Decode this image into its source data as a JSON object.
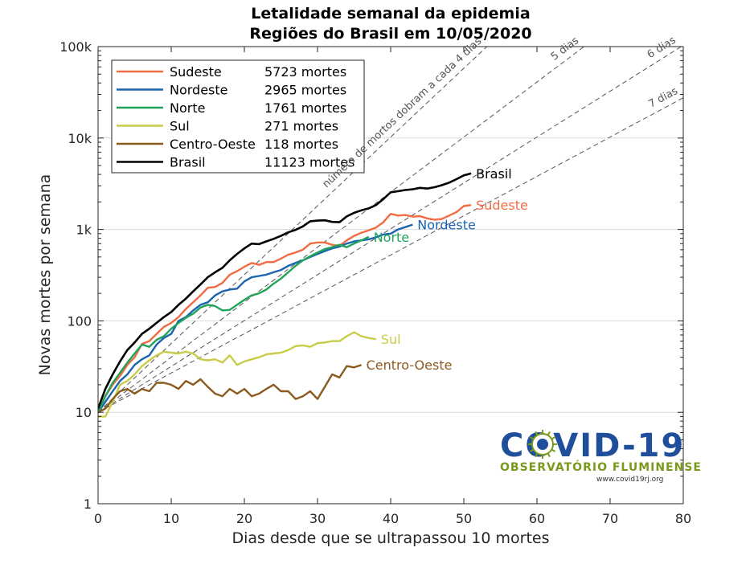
{
  "title_line1": "Letalidade semanal da epidemia",
  "title_line2": "Regiões do Brasil em 10/05/2020",
  "chart_data": {
    "type": "line",
    "xlabel": "Dias desde que se ultrapassou 10 mortes",
    "ylabel": "Novas mortes por semana",
    "xlim": [
      0,
      80
    ],
    "ylim": [
      1,
      100000
    ],
    "yscale": "log",
    "grid": "horizontal",
    "legend_position": "top-left",
    "x_ticks": [
      0,
      10,
      20,
      30,
      40,
      50,
      60,
      70,
      80
    ],
    "y_ticks": [
      {
        "value": 1,
        "label": "1"
      },
      {
        "value": 10,
        "label": "10"
      },
      {
        "value": 100,
        "label": "100"
      },
      {
        "value": 1000,
        "label": "1k"
      },
      {
        "value": 10000,
        "label": "10k"
      },
      {
        "value": 100000,
        "label": "100k"
      }
    ],
    "reference_lines": [
      {
        "label": "número de mortos dobram a cada 4 dias",
        "doubling_days": 4,
        "color": "#555555"
      },
      {
        "label": "5 dias",
        "doubling_days": 5,
        "color": "#555555"
      },
      {
        "label": "6 dias",
        "doubling_days": 6,
        "color": "#555555"
      },
      {
        "label": "7 dias",
        "doubling_days": 7,
        "color": "#555555"
      }
    ],
    "series": [
      {
        "name": "Sudeste",
        "deaths": "5723 mortes",
        "color": "#f26b43",
        "points": [
          [
            0,
            10
          ],
          [
            1,
            15
          ],
          [
            2,
            20
          ],
          [
            3,
            25
          ],
          [
            4,
            33
          ],
          [
            5,
            40
          ],
          [
            6,
            56
          ],
          [
            7,
            60
          ],
          [
            8,
            72
          ],
          [
            9,
            86
          ],
          [
            10,
            95
          ],
          [
            11,
            110
          ],
          [
            12,
            135
          ],
          [
            13,
            160
          ],
          [
            14,
            190
          ],
          [
            15,
            230
          ],
          [
            16,
            235
          ],
          [
            17,
            260
          ],
          [
            18,
            320
          ],
          [
            19,
            350
          ],
          [
            20,
            390
          ],
          [
            21,
            430
          ],
          [
            22,
            410
          ],
          [
            23,
            440
          ],
          [
            24,
            440
          ],
          [
            25,
            480
          ],
          [
            26,
            530
          ],
          [
            27,
            560
          ],
          [
            28,
            600
          ],
          [
            29,
            700
          ],
          [
            30,
            720
          ],
          [
            31,
            720
          ],
          [
            32,
            680
          ],
          [
            33,
            660
          ],
          [
            34,
            760
          ],
          [
            35,
            850
          ],
          [
            36,
            920
          ],
          [
            37,
            980
          ],
          [
            38,
            1050
          ],
          [
            39,
            1200
          ],
          [
            40,
            1480
          ],
          [
            41,
            1420
          ],
          [
            42,
            1440
          ],
          [
            43,
            1380
          ],
          [
            44,
            1400
          ],
          [
            45,
            1320
          ],
          [
            46,
            1280
          ],
          [
            47,
            1300
          ],
          [
            48,
            1420
          ],
          [
            49,
            1550
          ],
          [
            50,
            1800
          ],
          [
            51,
            1850
          ]
        ]
      },
      {
        "name": "Nordeste",
        "deaths": "2965 mortes",
        "color": "#1a64b0",
        "points": [
          [
            0,
            10
          ],
          [
            1,
            13
          ],
          [
            2,
            17
          ],
          [
            3,
            22
          ],
          [
            4,
            26
          ],
          [
            5,
            33
          ],
          [
            6,
            38
          ],
          [
            7,
            42
          ],
          [
            8,
            55
          ],
          [
            9,
            65
          ],
          [
            10,
            72
          ],
          [
            11,
            100
          ],
          [
            12,
            110
          ],
          [
            13,
            130
          ],
          [
            14,
            150
          ],
          [
            15,
            160
          ],
          [
            16,
            190
          ],
          [
            17,
            210
          ],
          [
            18,
            220
          ],
          [
            19,
            225
          ],
          [
            20,
            270
          ],
          [
            21,
            300
          ],
          [
            22,
            310
          ],
          [
            23,
            320
          ],
          [
            24,
            340
          ],
          [
            25,
            360
          ],
          [
            26,
            400
          ],
          [
            27,
            430
          ],
          [
            28,
            460
          ],
          [
            29,
            500
          ],
          [
            30,
            540
          ],
          [
            31,
            580
          ],
          [
            32,
            620
          ],
          [
            33,
            650
          ],
          [
            34,
            700
          ],
          [
            35,
            740
          ],
          [
            36,
            760
          ],
          [
            37,
            780
          ],
          [
            38,
            820
          ],
          [
            39,
            880
          ],
          [
            40,
            900
          ],
          [
            41,
            1000
          ],
          [
            42,
            1060
          ],
          [
            43,
            1130
          ]
        ]
      },
      {
        "name": "Norte",
        "deaths": "1761 mortes",
        "color": "#21a35a",
        "points": [
          [
            0,
            10
          ],
          [
            1,
            15
          ],
          [
            2,
            21
          ],
          [
            3,
            27
          ],
          [
            4,
            35
          ],
          [
            5,
            44
          ],
          [
            6,
            55
          ],
          [
            7,
            52
          ],
          [
            8,
            62
          ],
          [
            9,
            68
          ],
          [
            10,
            82
          ],
          [
            11,
            95
          ],
          [
            12,
            108
          ],
          [
            13,
            120
          ],
          [
            14,
            140
          ],
          [
            15,
            150
          ],
          [
            16,
            145
          ],
          [
            17,
            130
          ],
          [
            18,
            132
          ],
          [
            19,
            150
          ],
          [
            20,
            170
          ],
          [
            21,
            190
          ],
          [
            22,
            200
          ],
          [
            23,
            220
          ],
          [
            24,
            255
          ],
          [
            25,
            290
          ],
          [
            26,
            340
          ],
          [
            27,
            400
          ],
          [
            28,
            460
          ],
          [
            29,
            510
          ],
          [
            30,
            560
          ],
          [
            31,
            610
          ],
          [
            32,
            640
          ],
          [
            33,
            680
          ],
          [
            34,
            640
          ],
          [
            35,
            700
          ],
          [
            36,
            760
          ],
          [
            37,
            830
          ]
        ]
      },
      {
        "name": "Sul",
        "deaths": "271 mortes",
        "color": "#c8cc48",
        "points": [
          [
            0,
            9
          ],
          [
            1,
            9
          ],
          [
            2,
            13
          ],
          [
            3,
            20
          ],
          [
            4,
            22
          ],
          [
            5,
            26
          ],
          [
            6,
            32
          ],
          [
            7,
            37
          ],
          [
            8,
            42
          ],
          [
            9,
            46
          ],
          [
            10,
            45
          ],
          [
            11,
            44
          ],
          [
            12,
            46
          ],
          [
            13,
            44
          ],
          [
            14,
            38
          ],
          [
            15,
            37
          ],
          [
            16,
            38
          ],
          [
            17,
            35
          ],
          [
            18,
            42
          ],
          [
            19,
            33
          ],
          [
            20,
            36
          ],
          [
            21,
            38
          ],
          [
            22,
            40
          ],
          [
            23,
            43
          ],
          [
            24,
            44
          ],
          [
            25,
            45
          ],
          [
            26,
            48
          ],
          [
            27,
            53
          ],
          [
            28,
            54
          ],
          [
            29,
            52
          ],
          [
            30,
            57
          ],
          [
            31,
            58
          ],
          [
            32,
            60
          ],
          [
            33,
            60
          ],
          [
            34,
            68
          ],
          [
            35,
            75
          ],
          [
            36,
            68
          ],
          [
            37,
            65
          ],
          [
            38,
            63
          ]
        ]
      },
      {
        "name": "Centro-Oeste",
        "deaths": "118 mortes",
        "color": "#8b5a1f",
        "points": [
          [
            0,
            10
          ],
          [
            1,
            11
          ],
          [
            2,
            14
          ],
          [
            3,
            17
          ],
          [
            4,
            18
          ],
          [
            5,
            16
          ],
          [
            6,
            18
          ],
          [
            7,
            17
          ],
          [
            8,
            21
          ],
          [
            9,
            21
          ],
          [
            10,
            20
          ],
          [
            11,
            18
          ],
          [
            12,
            22
          ],
          [
            13,
            20
          ],
          [
            14,
            23
          ],
          [
            15,
            19
          ],
          [
            16,
            16
          ],
          [
            17,
            15
          ],
          [
            18,
            18
          ],
          [
            19,
            16
          ],
          [
            20,
            18
          ],
          [
            21,
            15
          ],
          [
            22,
            16
          ],
          [
            23,
            18
          ],
          [
            24,
            20
          ],
          [
            25,
            17
          ],
          [
            26,
            17
          ],
          [
            27,
            14
          ],
          [
            28,
            15
          ],
          [
            29,
            17
          ],
          [
            30,
            14
          ],
          [
            31,
            19
          ],
          [
            32,
            26
          ],
          [
            33,
            24
          ],
          [
            34,
            32
          ],
          [
            35,
            31
          ],
          [
            36,
            33
          ]
        ]
      },
      {
        "name": "Brasil",
        "deaths": "11123 mortes",
        "color": "#000000",
        "points": [
          [
            0,
            11
          ],
          [
            1,
            18
          ],
          [
            2,
            26
          ],
          [
            3,
            36
          ],
          [
            4,
            48
          ],
          [
            5,
            58
          ],
          [
            6,
            72
          ],
          [
            7,
            82
          ],
          [
            8,
            95
          ],
          [
            9,
            110
          ],
          [
            10,
            125
          ],
          [
            11,
            150
          ],
          [
            12,
            175
          ],
          [
            13,
            210
          ],
          [
            14,
            250
          ],
          [
            15,
            300
          ],
          [
            16,
            340
          ],
          [
            17,
            380
          ],
          [
            18,
            460
          ],
          [
            19,
            540
          ],
          [
            20,
            620
          ],
          [
            21,
            700
          ],
          [
            22,
            690
          ],
          [
            23,
            740
          ],
          [
            24,
            790
          ],
          [
            25,
            850
          ],
          [
            26,
            930
          ],
          [
            27,
            990
          ],
          [
            28,
            1080
          ],
          [
            29,
            1230
          ],
          [
            30,
            1250
          ],
          [
            31,
            1260
          ],
          [
            32,
            1210
          ],
          [
            33,
            1200
          ],
          [
            34,
            1390
          ],
          [
            35,
            1520
          ],
          [
            36,
            1620
          ],
          [
            37,
            1700
          ],
          [
            38,
            1850
          ],
          [
            39,
            2150
          ],
          [
            40,
            2550
          ],
          [
            41,
            2620
          ],
          [
            42,
            2700
          ],
          [
            43,
            2750
          ],
          [
            44,
            2850
          ],
          [
            45,
            2800
          ],
          [
            46,
            2900
          ],
          [
            47,
            3050
          ],
          [
            48,
            3250
          ],
          [
            49,
            3550
          ],
          [
            50,
            3900
          ],
          [
            51,
            4100
          ]
        ]
      }
    ]
  },
  "logo": {
    "main": "COVID-19",
    "sub": "OBSERVATÓRIO FLUMINENSE",
    "url": "www.covid19rj.org"
  }
}
